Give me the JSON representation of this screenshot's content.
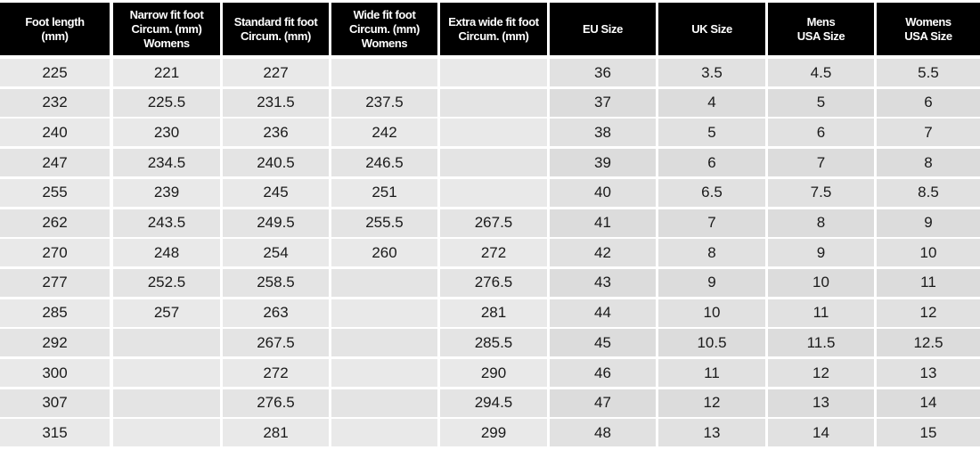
{
  "table": {
    "header": [
      [
        "Foot length",
        "(mm)"
      ],
      [
        "Narrow fit foot",
        "Circum. (mm)",
        "Womens"
      ],
      [
        "Standard fit foot",
        "Circum. (mm)"
      ],
      [
        "Wide fit foot",
        "Circum. (mm)",
        "Womens"
      ],
      [
        "Extra wide fit foot",
        "Circum. (mm)"
      ],
      [
        "EU Size"
      ],
      [
        "UK Size"
      ],
      [
        "Mens",
        "USA Size"
      ],
      [
        "Womens",
        "USA Size"
      ]
    ],
    "rows": [
      [
        "225",
        "221",
        "227",
        null,
        null,
        "36",
        "3.5",
        "4.5",
        "5.5"
      ],
      [
        "232",
        "225.5",
        "231.5",
        "237.5",
        null,
        "37",
        "4",
        "5",
        "6"
      ],
      [
        "240",
        "230",
        "236",
        "242",
        null,
        "38",
        "5",
        "6",
        "7"
      ],
      [
        "247",
        "234.5",
        "240.5",
        "246.5",
        null,
        "39",
        "6",
        "7",
        "8"
      ],
      [
        "255",
        "239",
        "245",
        "251",
        null,
        "40",
        "6.5",
        "7.5",
        "8.5"
      ],
      [
        "262",
        "243.5",
        "249.5",
        "255.5",
        "267.5",
        "41",
        "7",
        "8",
        "9"
      ],
      [
        "270",
        "248",
        "254",
        "260",
        "272",
        "42",
        "8",
        "9",
        "10"
      ],
      [
        "277",
        "252.5",
        "258.5",
        null,
        "276.5",
        "43",
        "9",
        "10",
        "11"
      ],
      [
        "285",
        "257",
        "263",
        null,
        "281",
        "44",
        "10",
        "11",
        "12"
      ],
      [
        "292",
        null,
        "267.5",
        null,
        "285.5",
        "45",
        "10.5",
        "11.5",
        "12.5"
      ],
      [
        "300",
        null,
        "272",
        null,
        "290",
        "46",
        "11",
        "12",
        "13"
      ],
      [
        "307",
        null,
        "276.5",
        null,
        "294.5",
        "47",
        "12",
        "13",
        "14"
      ],
      [
        "315",
        null,
        "281",
        null,
        "299",
        "48",
        "13",
        "14",
        "15"
      ]
    ]
  }
}
